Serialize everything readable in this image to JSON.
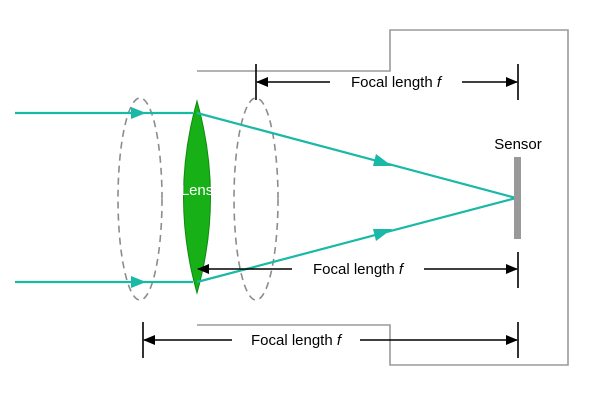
{
  "labels": {
    "lens": "Lens",
    "sensor": "Sensor",
    "focal_top": {
      "text": "Focal length ",
      "symbol": "f"
    },
    "focal_middle": {
      "text": "Focal length ",
      "symbol": "f"
    },
    "focal_bottom": {
      "text": "Focal length ",
      "symbol": "f"
    }
  },
  "colors": {
    "ray": "#1ab8a6",
    "lens_fill": "#17b117",
    "body_outline": "#9a9a9a",
    "sensor": "#999999",
    "ghost_lens": "#8c8c8c",
    "dimension": "#000000"
  }
}
